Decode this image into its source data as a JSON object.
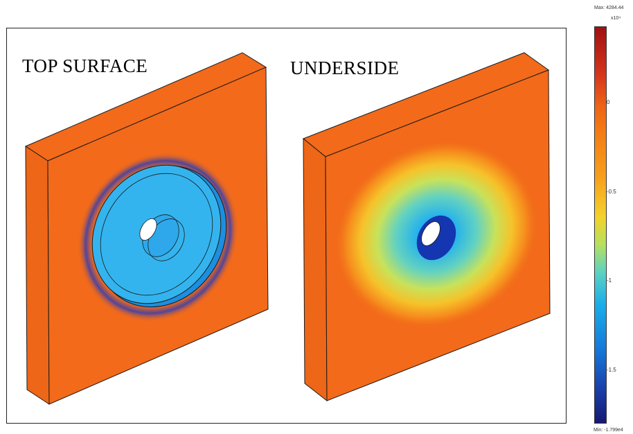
{
  "titles": {
    "left": "TOP SURFACE",
    "right": "UNDERSIDE"
  },
  "colorbar": {
    "max_label": "Max: 4284.44",
    "exponent_label": "x10⁴",
    "min_label": "Min: -1.799e4",
    "ticks": [
      "0",
      "-0.5",
      "-1",
      "-1.5"
    ],
    "tick_values": [
      0,
      -0.5,
      -1,
      -1.5
    ],
    "range": [
      -1.799,
      0.428
    ],
    "colors": {
      "high": "#a01010",
      "mid": "#f47a14",
      "low": "#161a72",
      "plate": "#f26a1a"
    }
  }
}
